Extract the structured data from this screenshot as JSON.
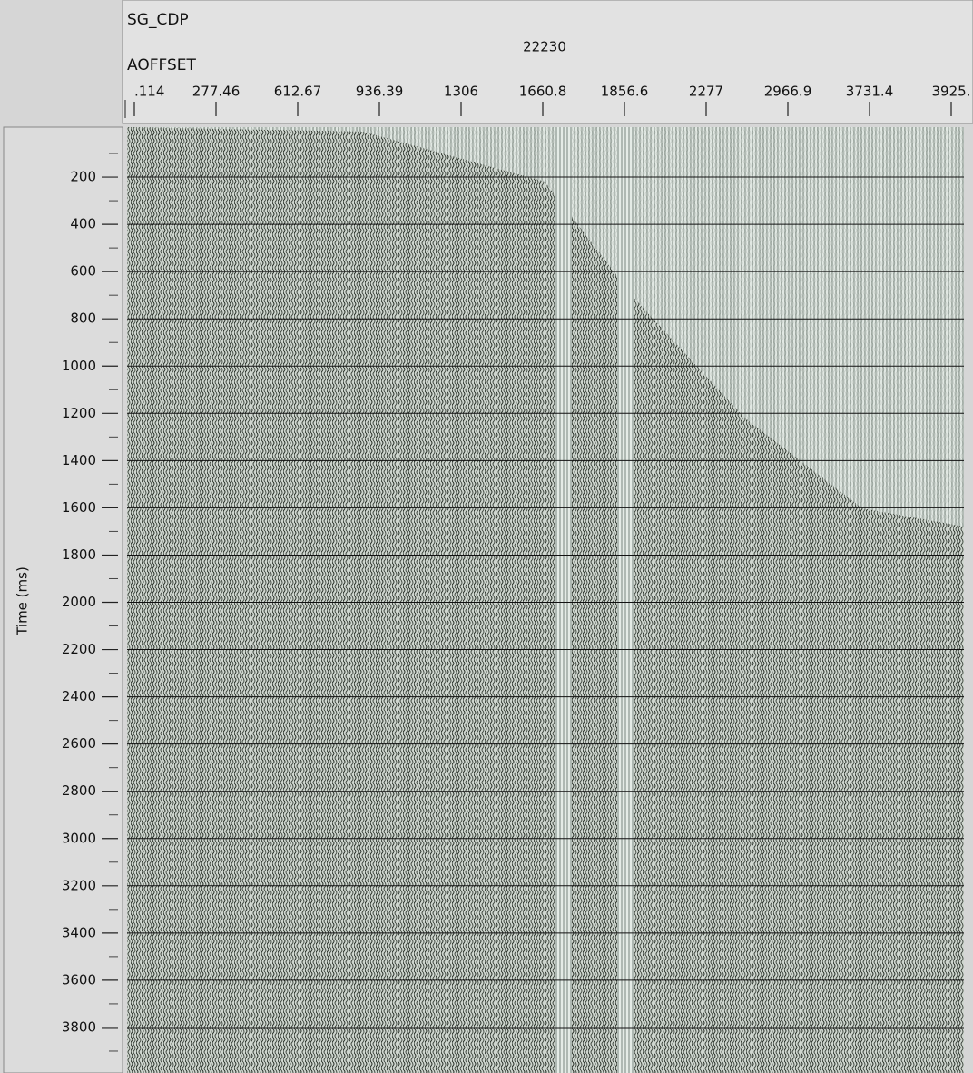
{
  "chart_data": {
    "type": "seismic",
    "header_labels": [
      "SG_CDP",
      "AOFFSET"
    ],
    "cdp": 22230,
    "x_labels": [
      ".114",
      "277.46",
      "612.67",
      "936.39",
      "1306",
      "1660.8",
      "1856.6",
      "2277",
      "2966.9",
      "3731.4",
      "3925."
    ],
    "ylabel": "Time (ms)",
    "ylim": [
      0,
      4000
    ],
    "yticks": [
      200,
      400,
      600,
      800,
      1000,
      1200,
      1400,
      1600,
      1800,
      2000,
      2200,
      2400,
      2600,
      2800,
      3000,
      3200,
      3400,
      3600,
      3800
    ],
    "grid": true
  }
}
